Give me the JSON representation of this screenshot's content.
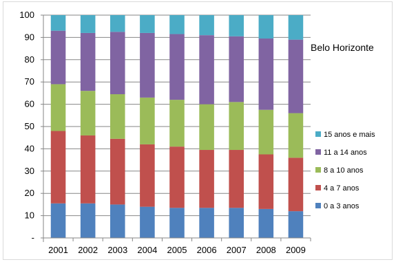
{
  "chart_data": {
    "type": "bar",
    "stacked": true,
    "title": "Belo Horizonte",
    "xlabel": "",
    "ylabel": "",
    "ylim": [
      0,
      100
    ],
    "yticks": [
      0,
      10,
      20,
      30,
      40,
      50,
      60,
      70,
      80,
      90,
      100
    ],
    "ytick_labels": [
      "-",
      "10",
      "20",
      "30",
      "40",
      "50",
      "60",
      "70",
      "80",
      "90",
      "100"
    ],
    "grid": true,
    "legend_position": "right",
    "categories": [
      "2001",
      "2002",
      "2003",
      "2004",
      "2005",
      "2006",
      "2007",
      "2008",
      "2009"
    ],
    "series": [
      {
        "name": "0 a 3 anos",
        "color": "#4f81bd",
        "values": [
          15.5,
          15.5,
          15,
          14,
          13.5,
          13.5,
          13.5,
          13,
          12
        ]
      },
      {
        "name": "4 a 7 anos",
        "color": "#c0504d",
        "values": [
          32.5,
          30.5,
          29.5,
          28,
          27.5,
          26,
          26,
          24.5,
          24
        ]
      },
      {
        "name": "8 a 10 anos",
        "color": "#9bbb59",
        "values": [
          21,
          20,
          20,
          21,
          21,
          20.5,
          21.5,
          20,
          20
        ]
      },
      {
        "name": "11 a 14 anos",
        "color": "#8064a2",
        "values": [
          24,
          26,
          28,
          29,
          29.5,
          31,
          29.5,
          32,
          33
        ]
      },
      {
        "name": "15 anos e mais",
        "color": "#4bacc6",
        "values": [
          7,
          8,
          7.5,
          8,
          8.5,
          9,
          9.5,
          10.5,
          11
        ]
      }
    ]
  }
}
